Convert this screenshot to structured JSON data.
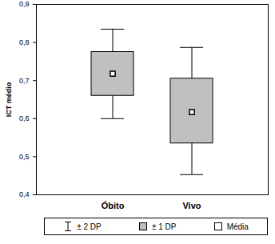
{
  "chart_data": {
    "type": "box",
    "y_label": "ICT médio",
    "categories": [
      "Óbito",
      "Vivo"
    ],
    "mean": [
      0.718,
      0.617
    ],
    "box_low": [
      0.66,
      0.535
    ],
    "box_high": [
      0.775,
      0.705
    ],
    "whisker_low": [
      0.6,
      0.453
    ],
    "whisker_high": [
      0.835,
      0.787
    ],
    "color": "#c0c0c0",
    "ylim": [
      0.4,
      0.9
    ],
    "yticks": [
      {
        "value": 0.4,
        "label": "0,4"
      },
      {
        "value": 0.5,
        "label": "0,5"
      },
      {
        "value": 0.6,
        "label": "0,6"
      },
      {
        "value": 0.7,
        "label": "0,7"
      },
      {
        "value": 0.8,
        "label": "0,8"
      },
      {
        "value": 0.9,
        "label": "0,9"
      }
    ],
    "legend": "bottom",
    "legend_labels": {
      "whisker": "± 2 DP",
      "box": "± 1 DP",
      "mean": "Média"
    }
  }
}
